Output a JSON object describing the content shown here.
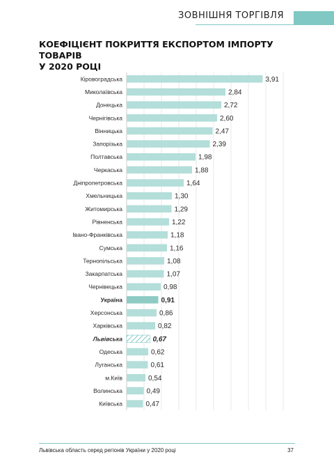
{
  "header": {
    "section_title": "ЗОВНІШНЯ ТОРГІВЛЯ",
    "accent_color": "#7fc8c3"
  },
  "footer": {
    "text": "Львівська область серед регіонів України у 2020 році",
    "page_number": "37"
  },
  "chart_data": {
    "type": "bar",
    "orientation": "horizontal",
    "title": "КОЕФІЦІЄНТ ПОКРИТТЯ ЕКСПОРТОМ ІМПОРТУ ТОВАРІВ У 2020 РОЦІ",
    "title_lines": [
      "КОЕФІЦІЄНТ ПОКРИТТЯ ЕКСПОРТОМ ІМПОРТУ ТОВАРІВ",
      "У 2020 РОЦІ"
    ],
    "xlabel": "",
    "ylabel": "",
    "xlim": [
      0,
      4.5
    ],
    "grid": true,
    "bar_color": "#b3ded9",
    "highlight_color": "#8fcbc5",
    "categories": [
      "Кіровоградська",
      "Миколаївська",
      "Донецька",
      "Чернігівська",
      "Вінницька",
      "Запорізька",
      "Полтавська",
      "Черкаська",
      "Дніпропетровська",
      "Хмельницька",
      "Житомирська",
      "Рівненська",
      "Івано-Франківська",
      "Сумська",
      "Тернопільська",
      "Закарпатська",
      "Чернівецька",
      "Україна",
      "Херсонська",
      "Харківська",
      "Львівська",
      "Одеська",
      "Луганська",
      "м.Київ",
      "Волинська",
      "Київська"
    ],
    "values": [
      3.91,
      2.84,
      2.72,
      2.6,
      2.47,
      2.39,
      1.98,
      1.88,
      1.64,
      1.3,
      1.29,
      1.22,
      1.18,
      1.16,
      1.08,
      1.07,
      0.98,
      0.91,
      0.86,
      0.82,
      0.67,
      0.62,
      0.61,
      0.54,
      0.49,
      0.47
    ],
    "value_labels": [
      "3,91",
      "2,84",
      "2,72",
      "2,60",
      "2,47",
      "2,39",
      "1,98",
      "1,88",
      "1,64",
      "1,30",
      "1,29",
      "1,22",
      "1,18",
      "1,16",
      "1,08",
      "1,07",
      "0,98",
      "0,91",
      "0,86",
      "0,82",
      "0,67",
      "0,62",
      "0,61",
      "0,54",
      "0,49",
      "0,47"
    ],
    "highlight": {
      "Україна": "solid",
      "Львівська": "hatched"
    }
  }
}
